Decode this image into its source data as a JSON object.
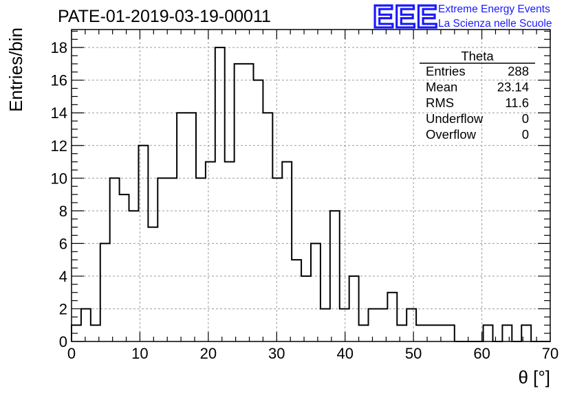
{
  "chart_data": {
    "type": "bar",
    "histogram": true,
    "title": "PATE-01-2019-03-19-00011",
    "xlabel": "θ [°]",
    "ylabel": "Entries/bin",
    "xlim": [
      0,
      70
    ],
    "ylim": [
      0,
      19.1
    ],
    "x_ticks": [
      0,
      10,
      20,
      30,
      40,
      50,
      60,
      70
    ],
    "y_ticks": [
      0,
      2,
      4,
      6,
      8,
      10,
      12,
      14,
      16,
      18
    ],
    "grid": true,
    "bin_edges": [
      0,
      1.4,
      2.8,
      4.2,
      5.6,
      7,
      8.4,
      9.8,
      11.2,
      12.6,
      14,
      15.4,
      16.8,
      18.2,
      19.6,
      21,
      22.4,
      23.8,
      25.2,
      26.6,
      28,
      29.4,
      30.8,
      32.2,
      33.6,
      35,
      36.4,
      37.8,
      39.2,
      40.6,
      42,
      43.4,
      44.8,
      46.2,
      47.6,
      49,
      50.4,
      51.8,
      53.2,
      54.6,
      56,
      57.4,
      58.8,
      60.2,
      61.6,
      63,
      64.4,
      65.8,
      67.2,
      68.6,
      70
    ],
    "values": [
      1,
      2,
      1,
      6,
      10,
      9,
      8,
      12,
      7,
      10,
      10,
      14,
      14,
      10,
      11,
      18,
      11,
      17,
      17,
      16,
      14,
      10,
      11,
      5,
      4,
      6,
      2,
      8,
      2,
      4,
      1,
      2,
      2,
      3,
      1,
      2,
      1,
      1,
      1,
      1,
      0,
      0,
      0,
      1,
      0,
      1,
      0,
      1,
      0,
      0
    ],
    "stats": {
      "title": "Theta",
      "rows": [
        {
          "label": "Entries",
          "value": "288"
        },
        {
          "label": "Mean",
          "value": "23.14"
        },
        {
          "label": "RMS",
          "value": "11.6"
        },
        {
          "label": "Underflow",
          "value": "0"
        },
        {
          "label": "Overflow",
          "value": "0"
        }
      ]
    }
  },
  "logo": {
    "letters": "EEE",
    "line1": "Extreme Energy Events",
    "line2": "La Scienza nelle Scuole",
    "color": "#1a1aff"
  }
}
